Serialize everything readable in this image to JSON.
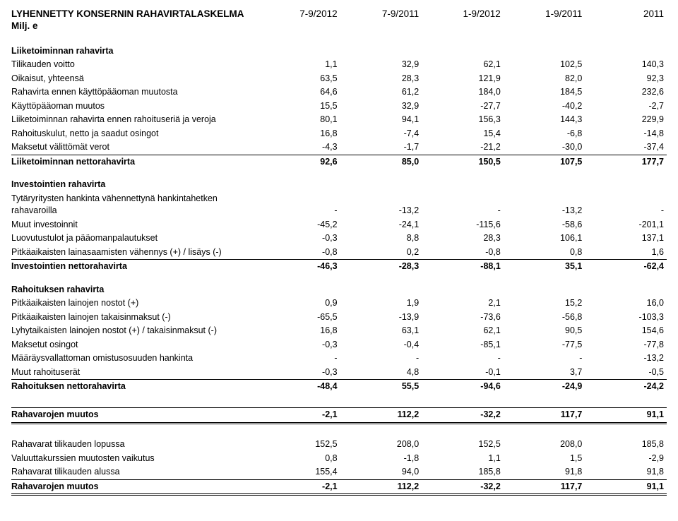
{
  "header": {
    "title_line1": "LYHENNETTY KONSERNIN RAHAVIRTALASKELMA",
    "title_line2": "Milj. e",
    "periods": [
      "7-9/2012",
      "7-9/2011",
      "1-9/2012",
      "1-9/2011",
      "2011"
    ]
  },
  "sections": [
    {
      "title": "Liiketoiminnan rahavirta",
      "rows": [
        {
          "label": "Tilikauden voitto",
          "v": [
            "1,1",
            "32,9",
            "62,1",
            "102,5",
            "140,3"
          ]
        },
        {
          "label": "Oikaisut, yhteensä",
          "v": [
            "63,5",
            "28,3",
            "121,9",
            "82,0",
            "92,3"
          ]
        },
        {
          "label": "Rahavirta ennen käyttöpääoman muutosta",
          "v": [
            "64,6",
            "61,2",
            "184,0",
            "184,5",
            "232,6"
          ]
        },
        {
          "label": "Käyttöpääoman muutos",
          "v": [
            "15,5",
            "32,9",
            "-27,7",
            "-40,2",
            "-2,7"
          ]
        },
        {
          "label": "Liiketoiminnan rahavirta ennen rahoituseriä ja veroja",
          "v": [
            "80,1",
            "94,1",
            "156,3",
            "144,3",
            "229,9"
          ]
        },
        {
          "label": "Rahoituskulut, netto ja saadut osingot",
          "v": [
            "16,8",
            "-7,4",
            "15,4",
            "-6,8",
            "-14,8"
          ]
        },
        {
          "label": "Maksetut välittömät verot",
          "v": [
            "-4,3",
            "-1,7",
            "-21,2",
            "-30,0",
            "-37,4"
          ]
        }
      ],
      "net": {
        "label": "Liiketoiminnan nettorahavirta",
        "v": [
          "92,6",
          "85,0",
          "150,5",
          "107,5",
          "177,7"
        ]
      }
    },
    {
      "title": "Investointien rahavirta",
      "rows": [
        {
          "label": "Tytäryritysten hankinta vähennettynä hankintahetken rahavaroilla",
          "v": [
            "-",
            "-13,2",
            "-",
            "-13,2",
            "-"
          ]
        },
        {
          "label": "Muut investoinnit",
          "v": [
            "-45,2",
            "-24,1",
            "-115,6",
            "-58,6",
            "-201,1"
          ]
        },
        {
          "label": "Luovutustulot ja pääomanpalautukset",
          "v": [
            "-0,3",
            "8,8",
            "28,3",
            "106,1",
            "137,1"
          ]
        },
        {
          "label": "Pitkäaikaisten lainasaamisten vähennys (+) / lisäys (-)",
          "v": [
            "-0,8",
            "0,2",
            "-0,8",
            "0,8",
            "1,6"
          ]
        }
      ],
      "net": {
        "label": "Investointien nettorahavirta",
        "v": [
          "-46,3",
          "-28,3",
          "-88,1",
          "35,1",
          "-62,4"
        ]
      }
    },
    {
      "title": "Rahoituksen rahavirta",
      "rows": [
        {
          "label": "Pitkäaikaisten lainojen nostot (+)",
          "v": [
            "0,9",
            "1,9",
            "2,1",
            "15,2",
            "16,0"
          ]
        },
        {
          "label": "Pitkäaikaisten lainojen takaisinmaksut (-)",
          "v": [
            "-65,5",
            "-13,9",
            "-73,6",
            "-56,8",
            "-103,3"
          ]
        },
        {
          "label": "Lyhytaikaisten lainojen nostot (+) / takaisinmaksut (-)",
          "v": [
            "16,8",
            "63,1",
            "62,1",
            "90,5",
            "154,6"
          ]
        },
        {
          "label": "Maksetut osingot",
          "v": [
            "-0,3",
            "-0,4",
            "-85,1",
            "-77,5",
            "-77,8"
          ]
        },
        {
          "label": "Määräysvallattoman omistusosuuden hankinta",
          "v": [
            "-",
            "-",
            "-",
            "-",
            "-13,2"
          ]
        },
        {
          "label": "Muut rahoituserät",
          "v": [
            "-0,3",
            "4,8",
            "-0,1",
            "3,7",
            "-0,5"
          ]
        }
      ],
      "net": {
        "label": "Rahoituksen nettorahavirta",
        "v": [
          "-48,4",
          "55,5",
          "-94,6",
          "-24,9",
          "-24,2"
        ]
      }
    }
  ],
  "change1": {
    "label": "Rahavarojen muutos",
    "v": [
      "-2,1",
      "112,2",
      "-32,2",
      "117,7",
      "91,1"
    ]
  },
  "bottom_rows": [
    {
      "label": "Rahavarat tilikauden lopussa",
      "v": [
        "152,5",
        "208,0",
        "152,5",
        "208,0",
        "185,8"
      ]
    },
    {
      "label": "Valuuttakurssien muutosten vaikutus",
      "v": [
        "0,8",
        "-1,8",
        "1,1",
        "1,5",
        "-2,9"
      ]
    },
    {
      "label": "Rahavarat tilikauden alussa",
      "v": [
        "155,4",
        "94,0",
        "185,8",
        "91,8",
        "91,8"
      ]
    }
  ],
  "change2": {
    "label": "Rahavarojen muutos",
    "v": [
      "-2,1",
      "112,2",
      "-32,2",
      "117,7",
      "91,1"
    ]
  }
}
